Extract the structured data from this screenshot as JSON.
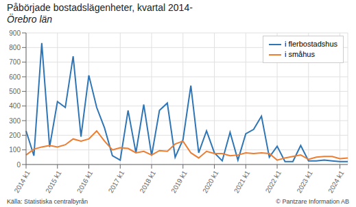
{
  "chart_data": {
    "type": "line",
    "title": "Påbörjade bostadslägenheter, kvartal 2014-",
    "subtitle": "Örebro län",
    "annotations": [
      "Källa: Statistiska centralbyrån",
      "© Pantzare Information AB"
    ],
    "categories": [
      "2014 k1",
      null,
      null,
      null,
      "2015 k1",
      null,
      null,
      null,
      "2016 k1",
      null,
      null,
      null,
      "2017 k1",
      null,
      null,
      null,
      "2018 k1",
      null,
      null,
      null,
      "2019 k1",
      null,
      null,
      null,
      "2020 k1",
      null,
      null,
      null,
      "2021 k1",
      null,
      null,
      null,
      "2022 k1",
      null,
      null,
      null,
      "2023 k1",
      null,
      null,
      null,
      "2024 k1",
      null
    ],
    "series": [
      {
        "name": "i flerbostadshus",
        "color": "#2E75B6",
        "values": [
          230,
          60,
          830,
          120,
          430,
          390,
          740,
          190,
          610,
          390,
          250,
          60,
          30,
          370,
          80,
          410,
          60,
          370,
          420,
          50,
          170,
          540,
          80,
          230,
          80,
          25,
          220,
          30,
          210,
          240,
          330,
          50,
          125,
          20,
          20,
          130,
          25,
          25,
          30,
          25,
          20,
          20
        ]
      },
      {
        "name": "i småhus",
        "color": "#ED7D31",
        "values": [
          65,
          105,
          120,
          130,
          120,
          135,
          175,
          160,
          175,
          230,
          160,
          100,
          115,
          110,
          80,
          90,
          65,
          95,
          90,
          140,
          160,
          80,
          45,
          90,
          75,
          75,
          60,
          65,
          80,
          75,
          80,
          75,
          30,
          45,
          55,
          65,
          35,
          50,
          55,
          55,
          40,
          45
        ]
      }
    ],
    "ylim": [
      0,
      900
    ],
    "yticks": [
      0,
      100,
      200,
      300,
      400,
      500,
      600,
      700,
      800,
      900
    ],
    "grid": true,
    "legend": "upper right"
  }
}
